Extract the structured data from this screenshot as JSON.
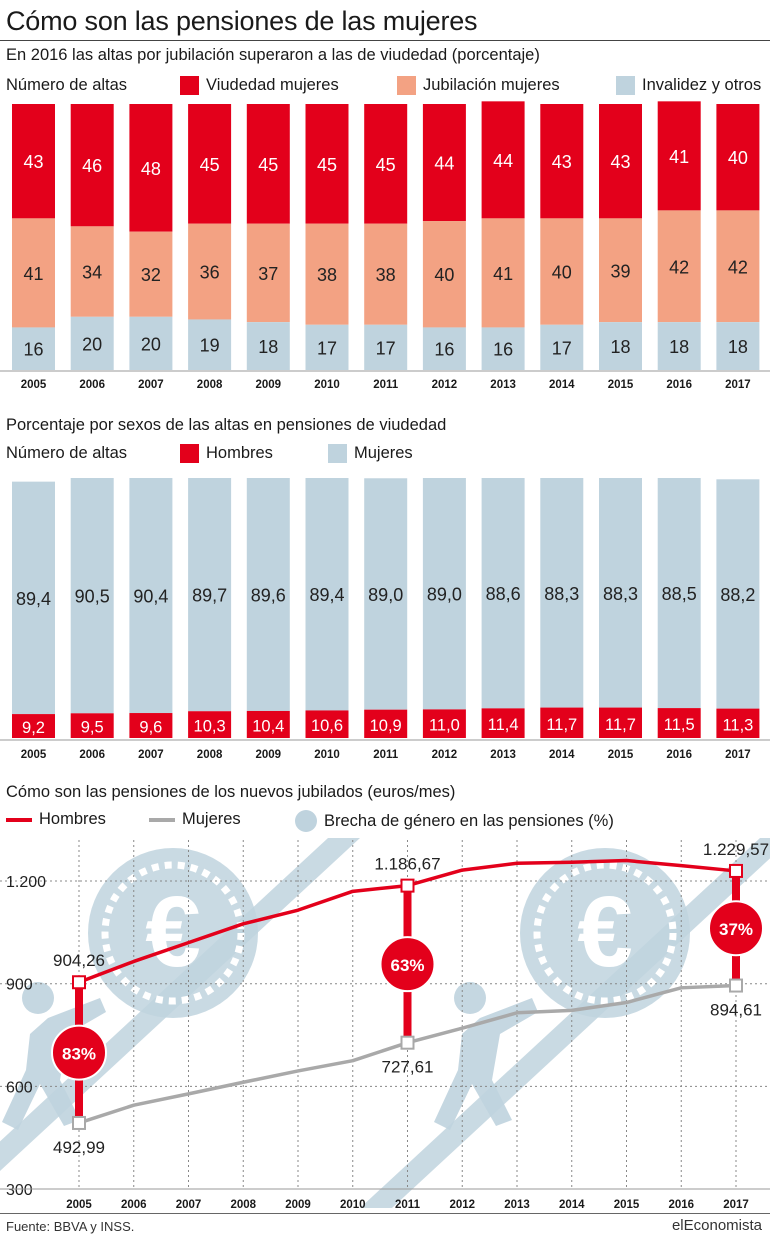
{
  "title": "Cómo son las pensiones de las mujeres",
  "source": "Fuente: BBVA y INSS.",
  "brand": "elEconomista",
  "colors": {
    "red": "#e3001b",
    "salmon": "#f3a283",
    "lightblue": "#bfd3de",
    "gray": "#a9a9a9",
    "darkred": "#c8001a"
  },
  "section1": {
    "subtitle": "En 2016 las altas por jubilación superaron a las de viudedad (porcentaje)",
    "legend_label": "Número de altas",
    "legend": [
      "Viudedad mujeres",
      "Jubilación mujeres",
      "Invalidez y otros"
    ]
  },
  "section2": {
    "subtitle": "Porcentaje por sexos de las altas en pensiones de viudedad",
    "legend_label": "Número de altas",
    "legend": [
      "Hombres",
      "Mujeres"
    ]
  },
  "section3": {
    "subtitle": "Cómo son las pensiones de los nuevos jubilados (euros/mes)",
    "legend": [
      "Hombres",
      "Mujeres",
      "Brecha de género en las pensiones (%)"
    ]
  },
  "chart_data": [
    {
      "type": "bar",
      "stacked": true,
      "title": "En 2016 las altas por jubilación superaron a las de viudedad (porcentaje)",
      "categories": [
        "2005",
        "2006",
        "2007",
        "2008",
        "2009",
        "2010",
        "2011",
        "2012",
        "2013",
        "2014",
        "2015",
        "2016",
        "2017"
      ],
      "series": [
        {
          "name": "Viudedad mujeres",
          "values": [
            43,
            46,
            48,
            45,
            45,
            45,
            45,
            44,
            44,
            43,
            43,
            41,
            40
          ],
          "labels": [
            "43",
            "46",
            "48",
            "45",
            "45",
            "45",
            "45",
            "44",
            "44",
            "43",
            "43",
            "41",
            "40"
          ]
        },
        {
          "name": "Jubilación mujeres",
          "values": [
            41,
            34,
            32,
            36,
            37,
            38,
            38,
            40,
            41,
            40,
            39,
            42,
            42
          ],
          "labels": [
            "41",
            "34",
            "32",
            "36",
            "37",
            "38",
            "38",
            "40",
            "41",
            "40",
            "39",
            "42",
            "42"
          ]
        },
        {
          "name": "Invalidez y otros",
          "values": [
            16,
            20,
            20,
            19,
            18,
            17,
            17,
            16,
            16,
            17,
            18,
            18,
            18
          ],
          "labels": [
            "16",
            "20",
            "20",
            "19",
            "18",
            "17",
            "17",
            "16",
            "16",
            "17",
            "18",
            "18",
            "18"
          ]
        }
      ]
    },
    {
      "type": "bar",
      "stacked": true,
      "title": "Porcentaje por sexos de las altas en pensiones de viudedad",
      "categories": [
        "2005",
        "2006",
        "2007",
        "2008",
        "2009",
        "2010",
        "2011",
        "2012",
        "2013",
        "2014",
        "2015",
        "2016",
        "2017"
      ],
      "series": [
        {
          "name": "Hombres",
          "values": [
            9.2,
            9.5,
            9.6,
            10.3,
            10.4,
            10.6,
            10.9,
            11.0,
            11.4,
            11.7,
            11.7,
            11.5,
            11.3
          ],
          "labels": [
            "9,2",
            "9,5",
            "9,6",
            "10,3",
            "10,4",
            "10,6",
            "10,9",
            "11,0",
            "11,4",
            "11,7",
            "11,7",
            "11,5",
            "11,3"
          ]
        },
        {
          "name": "Mujeres",
          "values": [
            89.4,
            90.5,
            90.4,
            89.7,
            89.6,
            89.4,
            89.0,
            89.0,
            88.6,
            88.3,
            88.3,
            88.5,
            88.2
          ],
          "labels": [
            "89,4",
            "90,5",
            "90,4",
            "89,7",
            "89,6",
            "89,4",
            "89,0",
            "89,0",
            "88,6",
            "88,3",
            "88,3",
            "88,5",
            "88,2"
          ]
        }
      ]
    },
    {
      "type": "line",
      "title": "Cómo son las pensiones de los nuevos jubilados (euros/mes)",
      "x": [
        "2005",
        "2006",
        "2007",
        "2008",
        "2009",
        "2010",
        "2011",
        "2012",
        "2013",
        "2014",
        "2015",
        "2016",
        "2017"
      ],
      "ylim": [
        300,
        1320
      ],
      "yticks": [
        300,
        600,
        900,
        1200
      ],
      "ytick_labels": [
        "300",
        "600",
        "900",
        "1.200"
      ],
      "series": [
        {
          "name": "Hombres",
          "values": [
            904.26,
            965,
            1020,
            1075,
            1115,
            1170,
            1186.67,
            1232,
            1252,
            1255,
            1260,
            1245,
            1229.57
          ]
        },
        {
          "name": "Mujeres",
          "values": [
            492.99,
            545,
            578,
            612,
            645,
            675,
            727.61,
            770,
            815,
            822,
            845,
            888,
            894.61
          ]
        }
      ],
      "point_labels": [
        {
          "x": "2005",
          "hombres": "904,26",
          "mujeres": "492,99",
          "gap": "83%"
        },
        {
          "x": "2011",
          "hombres": "1.186,67",
          "mujeres": "727,61",
          "gap": "63%"
        },
        {
          "x": "2017",
          "hombres": "1.229,57",
          "mujeres": "894,61",
          "gap": "37%"
        }
      ]
    }
  ]
}
